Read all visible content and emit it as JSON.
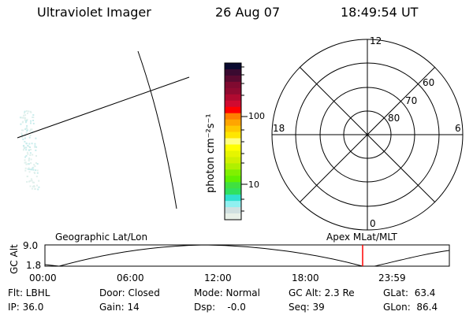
{
  "header": {
    "title": "Ultraviolet Imager",
    "date": "26 Aug 07",
    "time": "18:49:54 UT"
  },
  "colorbar": {
    "label": "photon cm⁻²s⁻¹",
    "ticks": [
      "100",
      "10"
    ],
    "colors": [
      "#0a0a30",
      "#3a0a30",
      "#5a0a30",
      "#800a30",
      "#900a30",
      "#b00a30",
      "#d00a30",
      "#ff0000",
      "#ff7f00",
      "#ffa500",
      "#ffc800",
      "#ffe600",
      "#ffff80",
      "#ffff00",
      "#e6f500",
      "#d0f000",
      "#b0f000",
      "#80f000",
      "#60f000",
      "#40e040",
      "#30e060",
      "#30e0d0",
      "#90f0f0",
      "#d0e0e0",
      "#e8f0e8"
    ]
  },
  "polar": {
    "mlt_labels": {
      "top": "12",
      "left": "18",
      "right": "6",
      "bottom": "0"
    },
    "lat_labels": [
      "60",
      "70",
      "80"
    ]
  },
  "timeline": {
    "left_title": "Geographic Lat/Lon",
    "right_title": "Apex MLat/MLT",
    "ylabel": "GC Alt",
    "y_ticks": [
      "9.0",
      "1.8"
    ],
    "x_ticks": [
      "00:00",
      "06:00",
      "12:00",
      "18:00",
      "23:59"
    ],
    "current_marker_color": "#ff0000"
  },
  "status": {
    "flt": "Flt: LBHL",
    "ip": "IP: 36.0",
    "door": "Door: Closed",
    "gain": "Gain: 14",
    "mode": "Mode: Normal",
    "dsp": "Dsp:    -0.0",
    "gcalt": "GC Alt: 2.3 Re",
    "seq": "Seq: 39",
    "glat": "GLat:  63.4",
    "glon": "GLon:  86.4"
  }
}
